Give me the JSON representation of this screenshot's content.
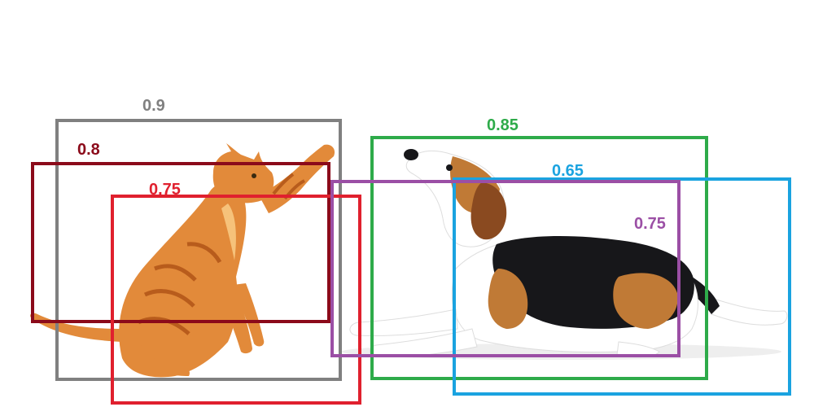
{
  "detections": [
    {
      "id": "cat-box-gray",
      "label": "0.9",
      "color": "#808080"
    },
    {
      "id": "cat-box-maroon",
      "label": "0.8",
      "color": "#8b0a1a"
    },
    {
      "id": "cat-box-red",
      "label": "0.75",
      "color": "#e0202e"
    },
    {
      "id": "dog-box-green",
      "label": "0.85",
      "color": "#2eab4a"
    },
    {
      "id": "dog-box-blue",
      "label": "0.65",
      "color": "#1aa3e0"
    },
    {
      "id": "dog-box-purple",
      "label": "0.75",
      "color": "#9b4fa5"
    }
  ],
  "scene": {
    "cat_colors": {
      "fur": "#e28a3a",
      "stripe": "#b85c1c",
      "light": "#f6c27a"
    },
    "dog_colors": {
      "white": "#ffffff",
      "tan": "#c07a36",
      "black": "#17171a",
      "ear": "#8a4a20"
    }
  }
}
